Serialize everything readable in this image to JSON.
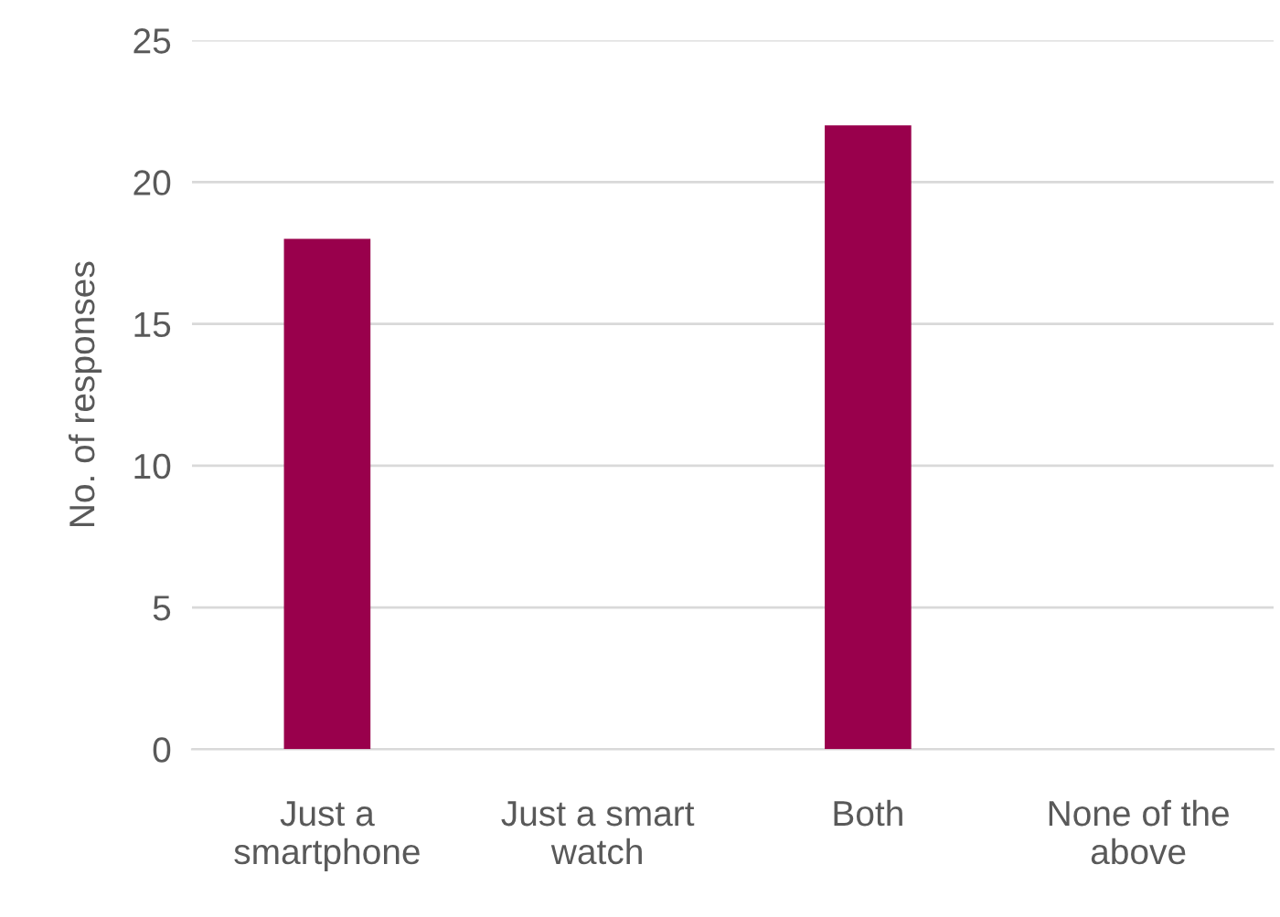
{
  "chart_data": {
    "type": "bar",
    "ylabel": "No. of responses",
    "categories": [
      "Just a\nsmartphone",
      "Just a smart\nwatch",
      "Both",
      "None of the\nabove"
    ],
    "values": [
      18,
      0,
      22,
      0
    ],
    "color": "#99004c",
    "ylim": [
      0,
      25
    ],
    "yticks": [
      0,
      5,
      10,
      15,
      20,
      25
    ],
    "grid": "y",
    "legend": false
  }
}
